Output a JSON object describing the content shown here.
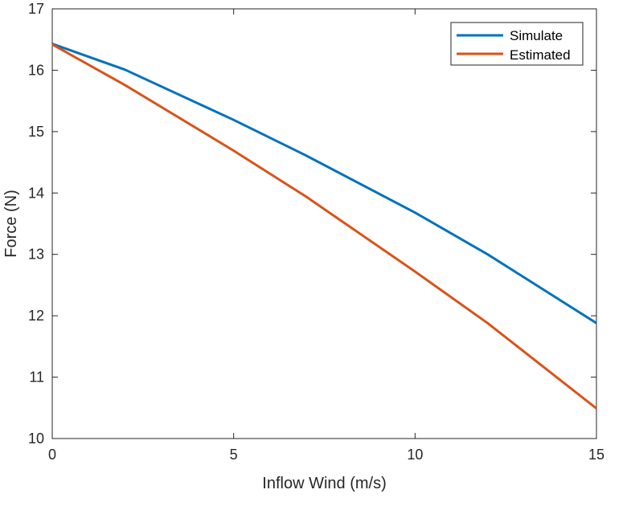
{
  "chart_data": {
    "type": "line",
    "title": "",
    "xlabel": "Inflow Wind (m/s)",
    "ylabel": "Force (N)",
    "xlim": [
      0,
      15
    ],
    "ylim": [
      10,
      17
    ],
    "xticks": [
      0,
      5,
      10,
      15
    ],
    "yticks": [
      10,
      11,
      12,
      13,
      14,
      15,
      16,
      17
    ],
    "grid": false,
    "legend_location": "top-right",
    "series": [
      {
        "name": "Simulate",
        "color": "#0072BD",
        "x": [
          0,
          2,
          5,
          7,
          10,
          12,
          15
        ],
        "y": [
          16.43,
          16.01,
          15.19,
          14.61,
          13.68,
          13.0,
          11.88
        ]
      },
      {
        "name": "Estimated",
        "color": "#D95319",
        "x": [
          0,
          2,
          5,
          7,
          10,
          12,
          15
        ],
        "y": [
          16.42,
          15.76,
          14.69,
          13.94,
          12.72,
          11.88,
          10.49
        ]
      }
    ]
  }
}
